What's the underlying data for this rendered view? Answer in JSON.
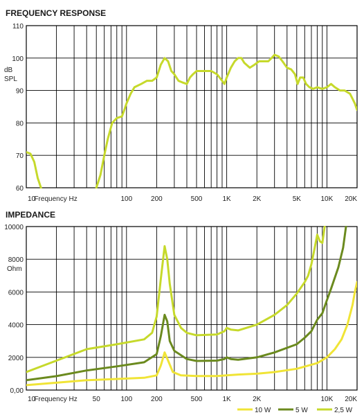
{
  "chart_data": [
    {
      "type": "line",
      "title": "FREQUENCY RESPONSE",
      "xlabel": "Frequency Hz",
      "ylabel": [
        "dB",
        "SPL"
      ],
      "xscale": "log",
      "xlim": [
        10,
        20000
      ],
      "ylim": [
        60,
        110
      ],
      "yticks": [
        60,
        70,
        80,
        90,
        100,
        110
      ],
      "ytick_labels": [
        "60",
        "70",
        "80",
        "90",
        "100",
        "110"
      ],
      "xticks": [
        10,
        100,
        200,
        500,
        1000,
        2000,
        5000,
        10000,
        20000
      ],
      "xtick_labels": [
        "10",
        "100",
        "200",
        "500",
        "1K",
        "2K",
        "5K",
        "10K",
        "20K"
      ],
      "grid": true,
      "series": [
        {
          "color": "#c6d92b",
          "segments": [
            [
              [
                10,
                71
              ],
              [
                11,
                70.5
              ],
              [
                12,
                68
              ],
              [
                13,
                63
              ],
              [
                14,
                60
              ]
            ],
            [
              [
                50,
                60
              ],
              [
                55,
                64
              ],
              [
                60,
                70
              ],
              [
                65,
                75
              ],
              [
                72,
                80
              ],
              [
                80,
                81.5
              ],
              [
                90,
                82
              ],
              [
                95,
                84
              ],
              [
                100,
                86
              ],
              [
                110,
                89
              ],
              [
                120,
                91
              ],
              [
                140,
                92
              ],
              [
                160,
                93
              ],
              [
                180,
                93
              ],
              [
                200,
                94
              ],
              [
                220,
                98
              ],
              [
                240,
                100
              ],
              [
                260,
                99
              ],
              [
                280,
                96
              ],
              [
                300,
                95
              ],
              [
                330,
                93
              ],
              [
                360,
                92.5
              ],
              [
                400,
                92
              ],
              [
                430,
                94
              ],
              [
                460,
                95
              ],
              [
                500,
                96
              ],
              [
                550,
                96
              ],
              [
                600,
                96
              ],
              [
                700,
                96
              ],
              [
                800,
                95
              ],
              [
                900,
                93
              ],
              [
                950,
                92
              ],
              [
                1000,
                94
              ],
              [
                1100,
                97
              ],
              [
                1200,
                99
              ],
              [
                1300,
                100
              ],
              [
                1400,
                100
              ],
              [
                1500,
                98.5
              ],
              [
                1700,
                97
              ],
              [
                1900,
                98
              ],
              [
                2100,
                99
              ],
              [
                2300,
                99
              ],
              [
                2600,
                99
              ],
              [
                2800,
                100
              ],
              [
                3000,
                101
              ],
              [
                3300,
                100.5
              ],
              [
                3600,
                99
              ],
              [
                4000,
                97
              ],
              [
                4400,
                96.5
              ],
              [
                4800,
                95
              ],
              [
                5100,
                92
              ],
              [
                5400,
                94
              ],
              [
                5800,
                94
              ],
              [
                6200,
                92
              ],
              [
                6700,
                91
              ],
              [
                7300,
                90.5
              ],
              [
                8000,
                91
              ],
              [
                9000,
                90.5
              ],
              [
                10000,
                91
              ],
              [
                11000,
                92
              ],
              [
                12000,
                91
              ],
              [
                13500,
                90
              ],
              [
                15000,
                90
              ],
              [
                17000,
                89
              ],
              [
                19000,
                86
              ],
              [
                20000,
                84
              ]
            ]
          ]
        }
      ]
    },
    {
      "type": "line",
      "title": "IMPEDANCE",
      "xlabel": "Frequency Hz",
      "ylabel": [
        "Ohm"
      ],
      "xscale": "log",
      "xlim": [
        10,
        20000
      ],
      "ylim": [
        0,
        10000
      ],
      "yticks": [
        0,
        2000,
        4000,
        6000,
        8000,
        10000
      ],
      "ytick_labels": [
        "0,00",
        "2000",
        "4000",
        "6000",
        "8000",
        "10000"
      ],
      "xticks": [
        10,
        50,
        100,
        200,
        500,
        1000,
        2000,
        10000,
        20000
      ],
      "xtick_labels": [
        "10",
        "50",
        "100",
        "200",
        "500",
        "1K",
        "2K",
        "10K",
        "20K"
      ],
      "grid": true,
      "legend_position": "bottom-right",
      "series": [
        {
          "name": "10 W",
          "color": "#f0e436",
          "points": [
            [
              10,
              300
            ],
            [
              20,
              450
            ],
            [
              40,
              600
            ],
            [
              80,
              680
            ],
            [
              150,
              750
            ],
            [
              200,
              900
            ],
            [
              220,
              1500
            ],
            [
              240,
              2300
            ],
            [
              260,
              1800
            ],
            [
              290,
              1100
            ],
            [
              350,
              900
            ],
            [
              500,
              860
            ],
            [
              800,
              860
            ],
            [
              1000,
              900
            ],
            [
              1300,
              950
            ],
            [
              2000,
              1000
            ],
            [
              3000,
              1100
            ],
            [
              5000,
              1300
            ],
            [
              8000,
              1650
            ],
            [
              10000,
              2000
            ],
            [
              12000,
              2500
            ],
            [
              14000,
              3100
            ],
            [
              16000,
              4000
            ],
            [
              18000,
              5200
            ],
            [
              19000,
              6000
            ],
            [
              20000,
              6600
            ]
          ]
        },
        {
          "name": "5 W",
          "color": "#6b8a1e",
          "points": [
            [
              10,
              600
            ],
            [
              20,
              850
            ],
            [
              40,
              1200
            ],
            [
              80,
              1450
            ],
            [
              150,
              1700
            ],
            [
              200,
              2200
            ],
            [
              220,
              3300
            ],
            [
              240,
              4600
            ],
            [
              255,
              4200
            ],
            [
              270,
              3000
            ],
            [
              300,
              2400
            ],
            [
              400,
              1900
            ],
            [
              500,
              1780
            ],
            [
              800,
              1800
            ],
            [
              950,
              1900
            ],
            [
              1000,
              2000
            ],
            [
              1100,
              1900
            ],
            [
              1300,
              1850
            ],
            [
              2000,
              2000
            ],
            [
              3000,
              2300
            ],
            [
              5000,
              2800
            ],
            [
              6000,
              3200
            ],
            [
              7000,
              3600
            ],
            [
              8000,
              4300
            ],
            [
              9000,
              4700
            ],
            [
              10000,
              5500
            ],
            [
              11000,
              6200
            ],
            [
              13000,
              7500
            ],
            [
              14500,
              8700
            ],
            [
              15500,
              10000
            ]
          ]
        },
        {
          "name": "2,5 W",
          "color": "#c6d92b",
          "points": [
            [
              10,
              1100
            ],
            [
              20,
              1800
            ],
            [
              40,
              2500
            ],
            [
              80,
              2800
            ],
            [
              150,
              3100
            ],
            [
              180,
              3500
            ],
            [
              200,
              4500
            ],
            [
              220,
              6800
            ],
            [
              240,
              8800
            ],
            [
              255,
              8000
            ],
            [
              270,
              6500
            ],
            [
              300,
              4600
            ],
            [
              350,
              3800
            ],
            [
              400,
              3500
            ],
            [
              500,
              3350
            ],
            [
              800,
              3400
            ],
            [
              950,
              3600
            ],
            [
              1000,
              3800
            ],
            [
              1100,
              3700
            ],
            [
              1300,
              3650
            ],
            [
              2000,
              4000
            ],
            [
              3000,
              4600
            ],
            [
              4000,
              5200
            ],
            [
              5000,
              5900
            ],
            [
              6000,
              6600
            ],
            [
              6500,
              7000
            ],
            [
              7000,
              7700
            ],
            [
              7500,
              8600
            ],
            [
              8000,
              9500
            ],
            [
              8500,
              9100
            ],
            [
              9000,
              9000
            ],
            [
              9500,
              10000
            ]
          ]
        }
      ]
    }
  ]
}
